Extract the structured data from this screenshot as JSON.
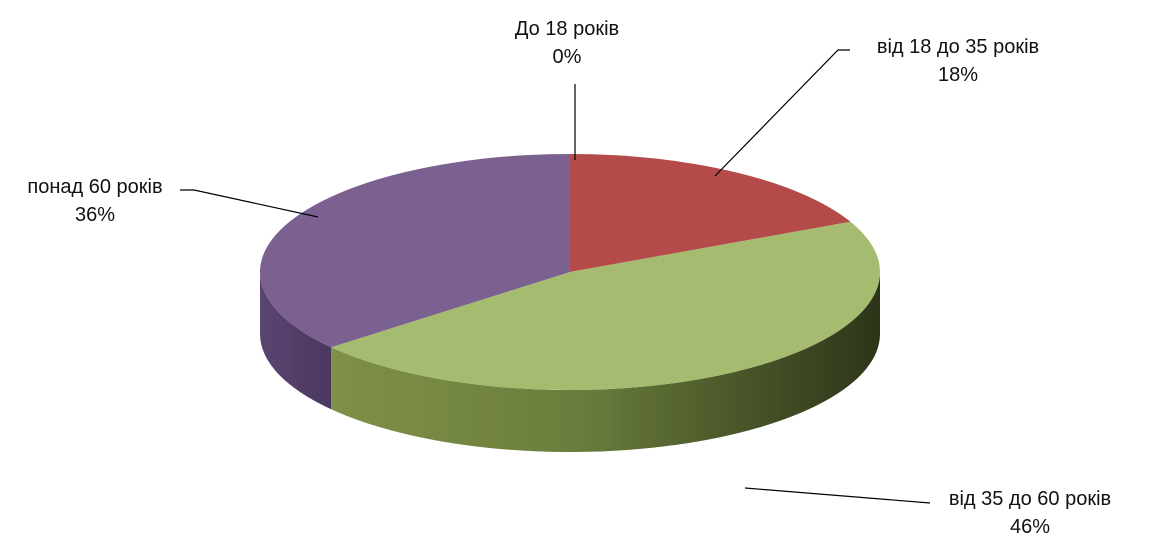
{
  "chart_data": {
    "type": "pie",
    "title": "",
    "slices": [
      {
        "name": "До 18  років",
        "value": 0,
        "value_label": "0%",
        "color": "#4a7ab8"
      },
      {
        "name": "від 18 до 35 років",
        "value": 18,
        "value_label": "18%",
        "color": "#b54a4a"
      },
      {
        "name": "від 35 до 60 років",
        "value": 46,
        "value_label": "46%",
        "color": "#a5bb70"
      },
      {
        "name": "понад 60 років",
        "value": 36,
        "value_label": "36%",
        "color": "#7b6190"
      }
    ],
    "legend": "none",
    "style": "3d-pie"
  }
}
